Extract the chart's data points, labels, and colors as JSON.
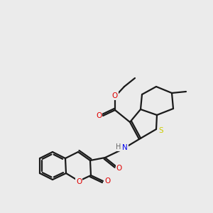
{
  "background_color": "#ebebeb",
  "bond_color": "#1a1a1a",
  "atom_colors": {
    "O": "#e00000",
    "N": "#0000ee",
    "S": "#cccc00",
    "H": "#666666"
  },
  "figsize": [
    3.0,
    3.0
  ],
  "dpi": 100
}
